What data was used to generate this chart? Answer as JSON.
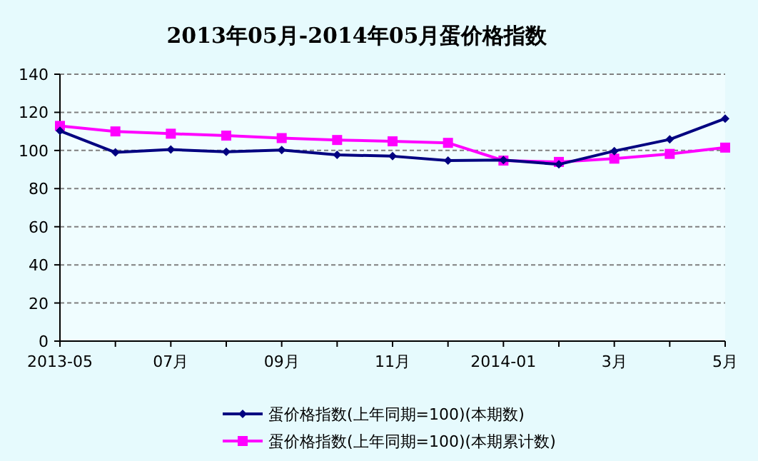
{
  "chart_data": {
    "type": "line",
    "title": "2013年05月-2014年05月蛋价格指数",
    "categories": [
      "2013-05",
      null,
      "07月",
      null,
      "09月",
      null,
      "11月",
      null,
      "2014-01",
      null,
      "3月",
      null,
      "5月"
    ],
    "series": [
      {
        "name": "蛋价格指数(上年同期=100)(本期数)",
        "color": "#000080",
        "marker": "diamond",
        "values": [
          110.3,
          99,
          100.5,
          99.3,
          100.2,
          97.7,
          97,
          94.7,
          95,
          92.7,
          99.7,
          105.8,
          116.7
        ]
      },
      {
        "name": "蛋价格指数(上年同期=100)(本期累计数)",
        "color": "#ff00ff",
        "marker": "square",
        "values": [
          112.9,
          110,
          108.8,
          107.8,
          106.5,
          105.5,
          104.8,
          104,
          94.7,
          94,
          95.7,
          98.2,
          101.5
        ]
      }
    ],
    "ylim": [
      0,
      140
    ],
    "yticks": [
      0,
      20,
      40,
      60,
      80,
      100,
      120,
      140
    ],
    "grid": "y",
    "legend": "bottom"
  }
}
